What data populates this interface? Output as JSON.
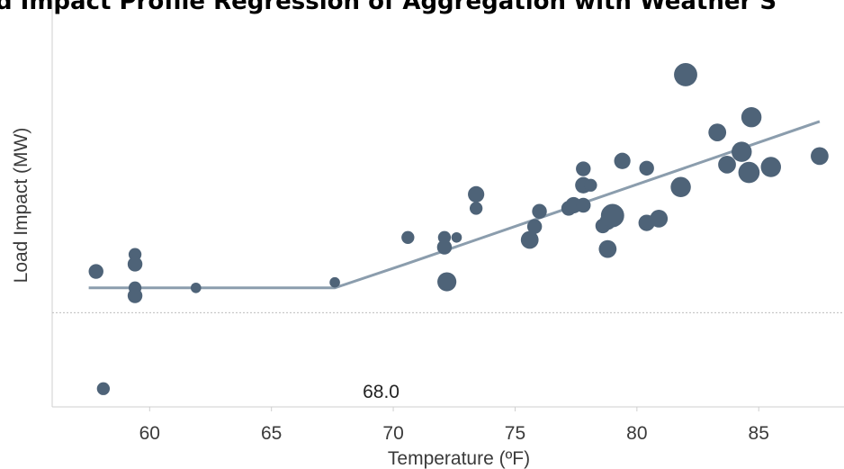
{
  "chart_data": {
    "type": "scatter",
    "title": "d Impact Profile Regression of Aggregation with Weather S",
    "xlabel": "Temperature (ºF)",
    "ylabel": "Load Impact (MW)",
    "xlim": [
      56.0,
      88.5
    ],
    "ylim": [
      -0.155,
      0.515
    ],
    "x_ticks": [
      60,
      65,
      70,
      75,
      80,
      85
    ],
    "y_ticks": [],
    "grid": false,
    "reference_line": {
      "y": 0,
      "style": "dotted"
    },
    "annotation": {
      "x": 69.5,
      "y": -0.14,
      "text": "68.0"
    },
    "colors": {
      "points": "#4e6378",
      "fit_line": "#8b9dad",
      "reference": "#bdbdbd",
      "axis": "#cfcfcf"
    },
    "fit_line": {
      "x": [
        57.5,
        67.6,
        70.5,
        87.5
      ],
      "y": [
        0.041,
        0.041,
        0.08,
        0.315
      ]
    },
    "points": [
      {
        "x": 57.8,
        "y": 0.068,
        "size": 3
      },
      {
        "x": 58.1,
        "y": -0.125,
        "size": 2
      },
      {
        "x": 59.4,
        "y": 0.096,
        "size": 2
      },
      {
        "x": 59.4,
        "y": 0.08,
        "size": 3
      },
      {
        "x": 59.4,
        "y": 0.041,
        "size": 2
      },
      {
        "x": 59.4,
        "y": 0.028,
        "size": 3
      },
      {
        "x": 61.9,
        "y": 0.041,
        "size": 1
      },
      {
        "x": 67.6,
        "y": 0.05,
        "size": 1
      },
      {
        "x": 70.6,
        "y": 0.124,
        "size": 2
      },
      {
        "x": 72.1,
        "y": 0.124,
        "size": 2
      },
      {
        "x": 72.1,
        "y": 0.108,
        "size": 3
      },
      {
        "x": 72.6,
        "y": 0.124,
        "size": 1
      },
      {
        "x": 72.2,
        "y": 0.051,
        "size": 6
      },
      {
        "x": 73.4,
        "y": 0.195,
        "size": 4
      },
      {
        "x": 73.4,
        "y": 0.172,
        "size": 2
      },
      {
        "x": 75.6,
        "y": 0.12,
        "size": 5
      },
      {
        "x": 75.8,
        "y": 0.142,
        "size": 3
      },
      {
        "x": 76.0,
        "y": 0.167,
        "size": 3
      },
      {
        "x": 77.2,
        "y": 0.172,
        "size": 3
      },
      {
        "x": 77.4,
        "y": 0.177,
        "size": 4
      },
      {
        "x": 77.8,
        "y": 0.177,
        "size": 3
      },
      {
        "x": 77.8,
        "y": 0.237,
        "size": 3
      },
      {
        "x": 77.8,
        "y": 0.21,
        "size": 4
      },
      {
        "x": 78.1,
        "y": 0.21,
        "size": 2
      },
      {
        "x": 78.6,
        "y": 0.143,
        "size": 3
      },
      {
        "x": 78.8,
        "y": 0.15,
        "size": 4
      },
      {
        "x": 78.8,
        "y": 0.105,
        "size": 5
      },
      {
        "x": 79.0,
        "y": 0.16,
        "size": 10
      },
      {
        "x": 79.4,
        "y": 0.25,
        "size": 4
      },
      {
        "x": 80.4,
        "y": 0.148,
        "size": 4
      },
      {
        "x": 80.4,
        "y": 0.238,
        "size": 3
      },
      {
        "x": 80.9,
        "y": 0.155,
        "size": 5
      },
      {
        "x": 81.8,
        "y": 0.207,
        "size": 7
      },
      {
        "x": 82.0,
        "y": 0.392,
        "size": 10
      },
      {
        "x": 83.3,
        "y": 0.297,
        "size": 5
      },
      {
        "x": 83.7,
        "y": 0.244,
        "size": 5
      },
      {
        "x": 84.3,
        "y": 0.265,
        "size": 7
      },
      {
        "x": 84.6,
        "y": 0.231,
        "size": 8
      },
      {
        "x": 84.7,
        "y": 0.322,
        "size": 7
      },
      {
        "x": 85.5,
        "y": 0.24,
        "size": 7
      },
      {
        "x": 87.5,
        "y": 0.258,
        "size": 5
      }
    ]
  }
}
